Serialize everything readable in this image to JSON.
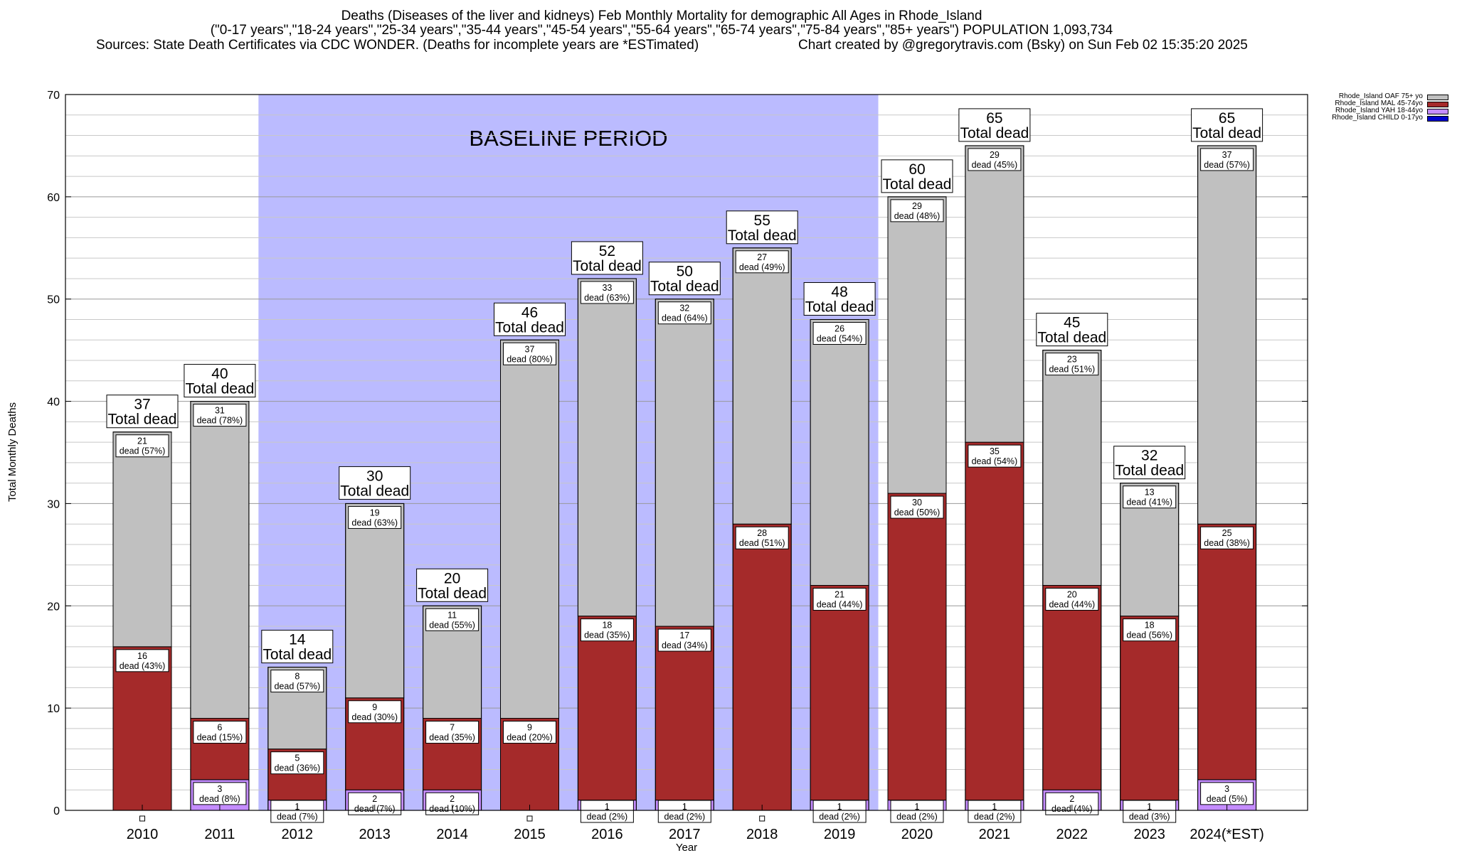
{
  "chart_data": {
    "type": "bar",
    "stacked": true,
    "title": [
      "Deaths (Diseases of the liver and kidneys) Feb Monthly Mortality for demographic All Ages in Rhode_Island",
      "(\"0-17 years\",\"18-24 years\",\"25-34 years\",\"35-44 years\",\"45-54 years\",\"55-64 years\",\"65-74 years\",\"75-84 years\",\"85+ years\") POPULATION 1,093,734"
    ],
    "sources": "Sources: State Death Certificates via CDC WONDER. (Deaths for incomplete years are *ESTimated)",
    "credit": "Chart created by @gregorytravis.com (Bsky) on Sun Feb 02 15:35:20 2025",
    "xlabel": "Year",
    "ylabel": "Total Monthly Deaths",
    "ylim": [
      0,
      70
    ],
    "yticks": [
      0,
      10,
      20,
      30,
      40,
      50,
      60,
      70
    ],
    "grid": true,
    "legend_position": "top-right",
    "baseline_label": "BASELINE PERIOD",
    "baseline_range": [
      "2012",
      "2019"
    ],
    "baseline_color": "#bbbbff",
    "total_label": "Total dead",
    "categories": [
      "2010",
      "2011",
      "2012",
      "2013",
      "2014",
      "2015",
      "2016",
      "2017",
      "2018",
      "2019",
      "2020",
      "2021",
      "2022",
      "2023",
      "2024(*EST)"
    ],
    "totals": [
      37,
      40,
      14,
      30,
      20,
      46,
      52,
      50,
      55,
      48,
      60,
      65,
      45,
      32,
      65
    ],
    "series": [
      {
        "name": "Rhode_Island CHILD 0-17yo",
        "color": "#0000cc",
        "values": [
          0,
          0,
          0,
          0,
          0,
          0,
          0,
          0,
          0,
          0,
          0,
          0,
          0,
          0,
          0
        ],
        "labels": [
          null,
          null,
          null,
          null,
          null,
          null,
          null,
          null,
          null,
          null,
          null,
          null,
          null,
          null,
          null
        ]
      },
      {
        "name": "Rhode_Island YAH 18-44yo",
        "color": "#c48cff",
        "values": [
          0,
          3,
          1,
          2,
          2,
          0,
          1,
          1,
          0,
          1,
          1,
          1,
          2,
          1,
          3
        ],
        "labels": [
          null,
          "dead (8%)",
          "dead (7%)",
          "dead (7%)",
          "dead (10%)",
          null,
          "dead (2%)",
          "dead (2%)",
          null,
          "dead (2%)",
          "dead (2%)",
          "dead (2%)",
          "dead (4%)",
          "dead (3%)",
          "dead (5%)"
        ]
      },
      {
        "name": "Rhode_Island MAL 45-74yo",
        "color": "#a52a2a",
        "values": [
          16,
          6,
          5,
          9,
          7,
          9,
          18,
          17,
          28,
          21,
          30,
          35,
          20,
          18,
          25
        ],
        "labels": [
          "dead (43%)",
          "dead (15%)",
          "dead (36%)",
          "dead (30%)",
          "dead (35%)",
          "dead (20%)",
          "dead (35%)",
          "dead (34%)",
          "dead (51%)",
          "dead (44%)",
          "dead (50%)",
          "dead (54%)",
          "dead (44%)",
          "dead (56%)",
          "dead (38%)"
        ]
      },
      {
        "name": "Rhode_Island OAF 75+ yo",
        "color": "#c0c0c0",
        "values": [
          21,
          31,
          8,
          19,
          11,
          37,
          33,
          32,
          27,
          26,
          29,
          29,
          23,
          13,
          37
        ],
        "labels": [
          "dead (57%)",
          "dead (78%)",
          "dead (57%)",
          "dead (63%)",
          "dead (55%)",
          "dead (80%)",
          "dead (63%)",
          "dead (64%)",
          "dead (49%)",
          "dead (54%)",
          "dead (48%)",
          "dead (45%)",
          "dead (51%)",
          "dead (41%)",
          "dead (57%)"
        ]
      }
    ],
    "legend_order": [
      "Rhode_Island OAF 75+ yo",
      "Rhode_Island MAL 45-74yo",
      "Rhode_Island YAH 18-44yo",
      "Rhode_Island CHILD 0-17yo"
    ]
  }
}
